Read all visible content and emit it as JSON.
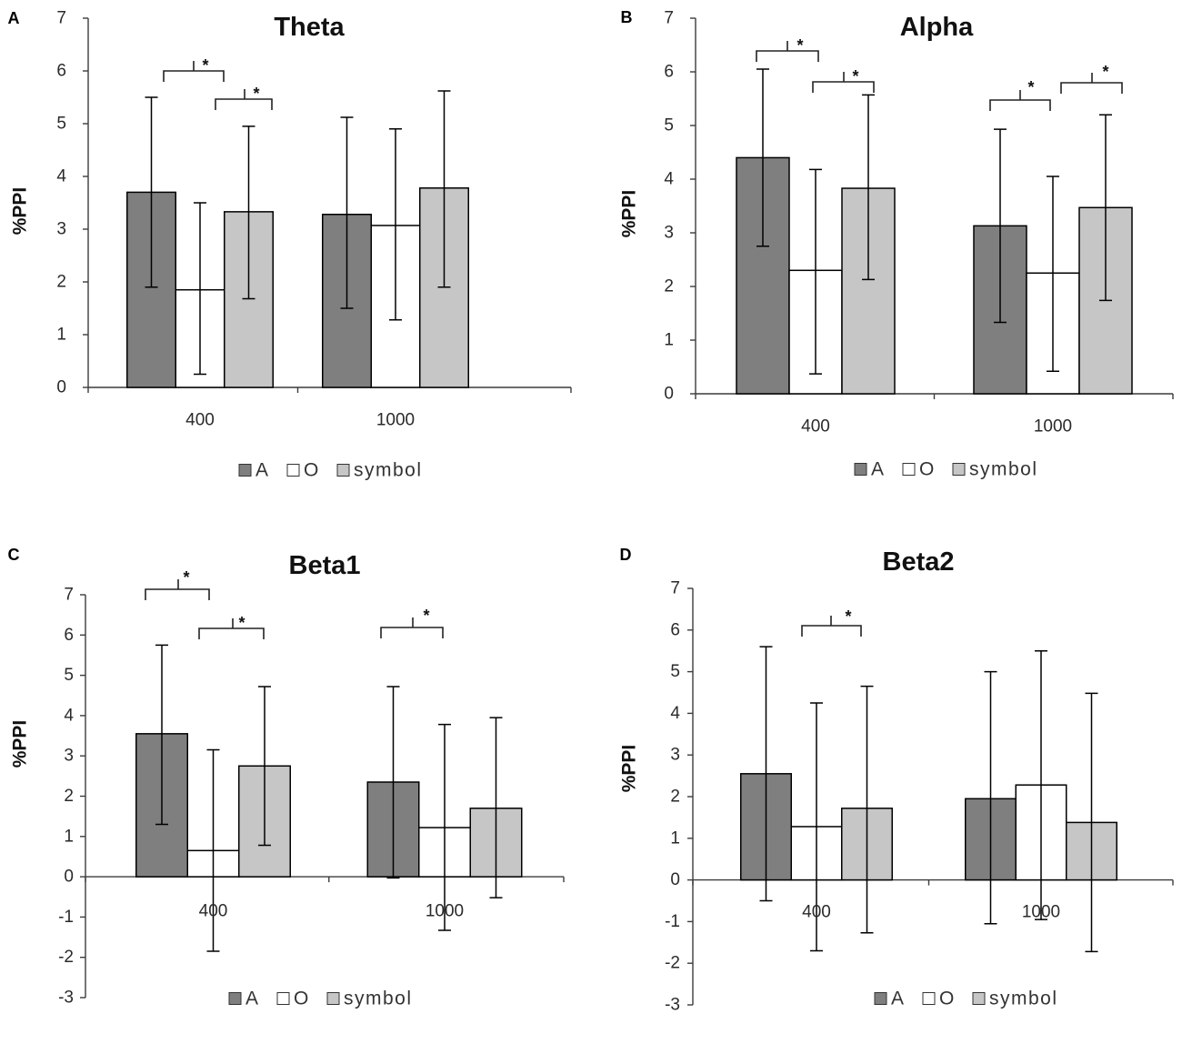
{
  "chart_data": [
    {
      "panel_label": "A",
      "type": "bar",
      "title": "Theta",
      "xlabel": "",
      "ylabel": "%PPI",
      "ylim": [
        0,
        7
      ],
      "yticks": [
        0,
        1,
        2,
        3,
        4,
        5,
        6,
        7
      ],
      "grid": false,
      "legend": "bottom",
      "categories": [
        "400",
        "1000"
      ],
      "series": [
        {
          "name": "A",
          "color": "#7f7f7f",
          "values": [
            3.7,
            3.28
          ],
          "err_low": [
            1.9,
            1.5
          ],
          "err_high": [
            5.5,
            5.12
          ]
        },
        {
          "name": "O",
          "color": "#ffffff",
          "values": [
            1.85,
            3.07
          ],
          "err_low": [
            0.25,
            1.28
          ],
          "err_high": [
            3.5,
            4.9
          ]
        },
        {
          "name": "symbol",
          "color": "#c6c6c6",
          "values": [
            3.33,
            3.78
          ],
          "err_low": [
            1.68,
            1.9
          ],
          "err_high": [
            4.95,
            5.62
          ]
        }
      ],
      "annotations": [
        {
          "category_index": 0,
          "between": [
            0,
            1
          ],
          "label": "*"
        },
        {
          "category_index": 0,
          "between": [
            1,
            2
          ],
          "label": "*"
        }
      ]
    },
    {
      "panel_label": "B",
      "type": "bar",
      "title": "Alpha",
      "xlabel": "",
      "ylabel": "%PPI",
      "ylim": [
        0,
        7
      ],
      "yticks": [
        0,
        1,
        2,
        3,
        4,
        5,
        6,
        7
      ],
      "grid": false,
      "legend": "bottom",
      "categories": [
        "400",
        "1000"
      ],
      "series": [
        {
          "name": "A",
          "color": "#7f7f7f",
          "values": [
            4.4,
            3.13
          ],
          "err_low": [
            2.75,
            1.33
          ],
          "err_high": [
            6.05,
            4.93
          ]
        },
        {
          "name": "O",
          "color": "#ffffff",
          "values": [
            2.3,
            2.25
          ],
          "err_low": [
            0.37,
            0.42
          ],
          "err_high": [
            4.18,
            4.05
          ]
        },
        {
          "name": "symbol",
          "color": "#c6c6c6",
          "values": [
            3.83,
            3.47
          ],
          "err_low": [
            2.13,
            1.74
          ],
          "err_high": [
            5.57,
            5.2
          ]
        }
      ],
      "annotations": [
        {
          "category_index": 0,
          "between": [
            0,
            1
          ],
          "label": "*"
        },
        {
          "category_index": 0,
          "between": [
            1,
            2
          ],
          "label": "*"
        },
        {
          "category_index": 1,
          "between": [
            0,
            1
          ],
          "label": "*"
        },
        {
          "category_index": 1,
          "between": [
            1,
            2
          ],
          "label": "*"
        }
      ]
    },
    {
      "panel_label": "C",
      "type": "bar",
      "title": "Beta1",
      "xlabel": "",
      "ylabel": "%PPI",
      "ylim": [
        -3,
        7
      ],
      "yticks": [
        -3,
        -2,
        -1,
        0,
        1,
        2,
        3,
        4,
        5,
        6,
        7
      ],
      "grid": false,
      "legend": "bottom",
      "categories": [
        "400",
        "1000"
      ],
      "series": [
        {
          "name": "A",
          "color": "#7f7f7f",
          "values": [
            3.55,
            2.35
          ],
          "err_low": [
            1.3,
            -0.03
          ],
          "err_high": [
            5.75,
            4.72
          ]
        },
        {
          "name": "O",
          "color": "#ffffff",
          "values": [
            0.65,
            1.22
          ],
          "err_low": [
            -1.85,
            -1.33
          ],
          "err_high": [
            3.15,
            3.78
          ]
        },
        {
          "name": "symbol",
          "color": "#c6c6c6",
          "values": [
            2.75,
            1.7
          ],
          "err_low": [
            0.78,
            -0.52
          ],
          "err_high": [
            4.72,
            3.95
          ]
        }
      ],
      "annotations": [
        {
          "category_index": 0,
          "between": [
            0,
            1
          ],
          "label": "*"
        },
        {
          "category_index": 0,
          "between": [
            1,
            2
          ],
          "label": "*"
        },
        {
          "category_index": 1,
          "between": [
            0,
            1
          ],
          "label": "*"
        }
      ]
    },
    {
      "panel_label": "D",
      "type": "bar",
      "title": "Beta2",
      "xlabel": "",
      "ylabel": "%PPI",
      "ylim": [
        -3,
        7
      ],
      "yticks": [
        -3,
        -2,
        -1,
        0,
        1,
        2,
        3,
        4,
        5,
        6,
        7
      ],
      "grid": false,
      "legend": "bottom",
      "categories": [
        "400",
        "1000"
      ],
      "series": [
        {
          "name": "A",
          "color": "#7f7f7f",
          "values": [
            2.55,
            1.95
          ],
          "err_low": [
            -0.5,
            -1.05
          ],
          "err_high": [
            5.6,
            5.0
          ]
        },
        {
          "name": "O",
          "color": "#ffffff",
          "values": [
            1.28,
            2.28
          ],
          "err_low": [
            -1.7,
            -0.95
          ],
          "err_high": [
            4.25,
            5.5
          ]
        },
        {
          "name": "symbol",
          "color": "#c6c6c6",
          "values": [
            1.72,
            1.38
          ],
          "err_low": [
            -1.27,
            -1.72
          ],
          "err_high": [
            4.65,
            4.48
          ]
        }
      ],
      "annotations": [
        {
          "category_index": 0,
          "between": [
            1,
            2
          ],
          "label": "*"
        }
      ]
    }
  ]
}
